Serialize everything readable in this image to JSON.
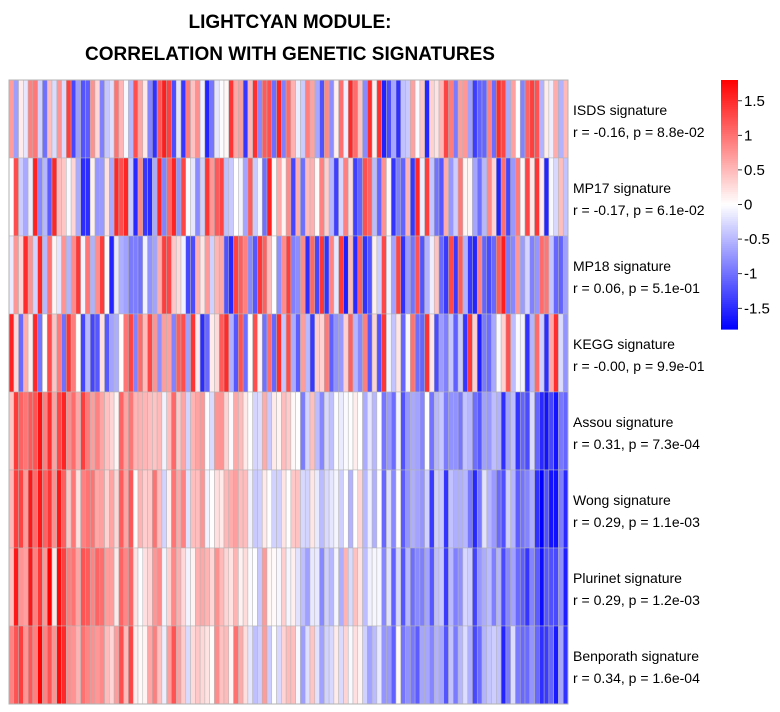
{
  "chart_data": {
    "type": "heatmap",
    "title_lines": [
      "LIGHTCYAN MODULE:",
      "CORRELATION WITH GENETIC SIGNATURES"
    ],
    "rows": [
      {
        "name": "ISDS signature",
        "stat": "r = -0.16, p = 8.8e-02"
      },
      {
        "name": "MP17 signature",
        "stat": "r = -0.17, p = 6.1e-02"
      },
      {
        "name": "MP18 signature",
        "stat": "r = 0.06, p = 5.1e-01"
      },
      {
        "name": "KEGG signature",
        "stat": "r = -0.00, p = 9.9e-01"
      },
      {
        "name": "Assou signature",
        "stat": "r = 0.31, p = 7.3e-04"
      },
      {
        "name": "Wong signature",
        "stat": "r = 0.29, p = 1.1e-03"
      },
      {
        "name": "Plurinet signature",
        "stat": "r = 0.29, p = 1.2e-03"
      },
      {
        "name": "Benporath signature",
        "stat": "r = 0.34, p = 1.6e-04"
      }
    ],
    "n_samples": 117,
    "value_range": [
      -1.8,
      1.8
    ],
    "colorscale": [
      "#0000ff",
      "#ffffff",
      "#ff0000"
    ],
    "colorbar": {
      "ticks": [
        1.5,
        1,
        0.5,
        0,
        -0.5,
        -1,
        -1.5
      ],
      "tick_labels": [
        "1.5",
        "1",
        "0.5",
        "0",
        "-0.5",
        "-1",
        "-1.5"
      ],
      "placement": "right"
    },
    "grid_color": "#b3b3b3"
  }
}
